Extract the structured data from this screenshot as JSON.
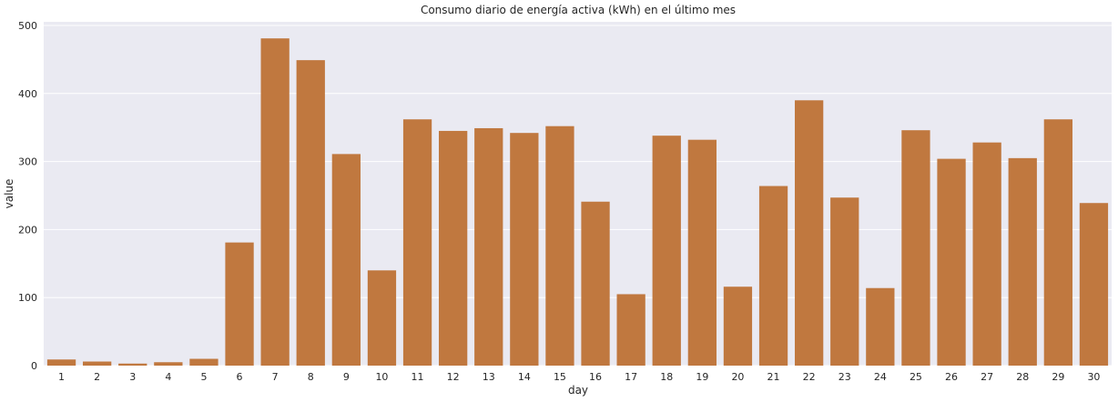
{
  "chart_data": {
    "type": "bar",
    "title": "Consumo diario de energía activa (kWh) en el último mes",
    "xlabel": "day",
    "ylabel": "value",
    "ylim": [
      0,
      500
    ],
    "yticks": [
      0,
      100,
      200,
      300,
      400,
      500
    ],
    "grid": true,
    "legend": "none",
    "colors": {
      "bar": "#c0783f",
      "plot_background": "#eaeaf2",
      "grid": "#ffffff"
    },
    "categories": [
      "1",
      "2",
      "3",
      "4",
      "5",
      "6",
      "7",
      "8",
      "9",
      "10",
      "11",
      "12",
      "13",
      "14",
      "15",
      "16",
      "17",
      "18",
      "19",
      "20",
      "21",
      "22",
      "23",
      "24",
      "25",
      "26",
      "27",
      "28",
      "29",
      "30"
    ],
    "values": [
      9,
      6,
      3,
      5,
      10,
      181,
      481,
      449,
      311,
      140,
      362,
      345,
      349,
      342,
      352,
      241,
      105,
      338,
      332,
      116,
      264,
      390,
      247,
      114,
      346,
      304,
      328,
      305,
      362,
      239
    ]
  }
}
